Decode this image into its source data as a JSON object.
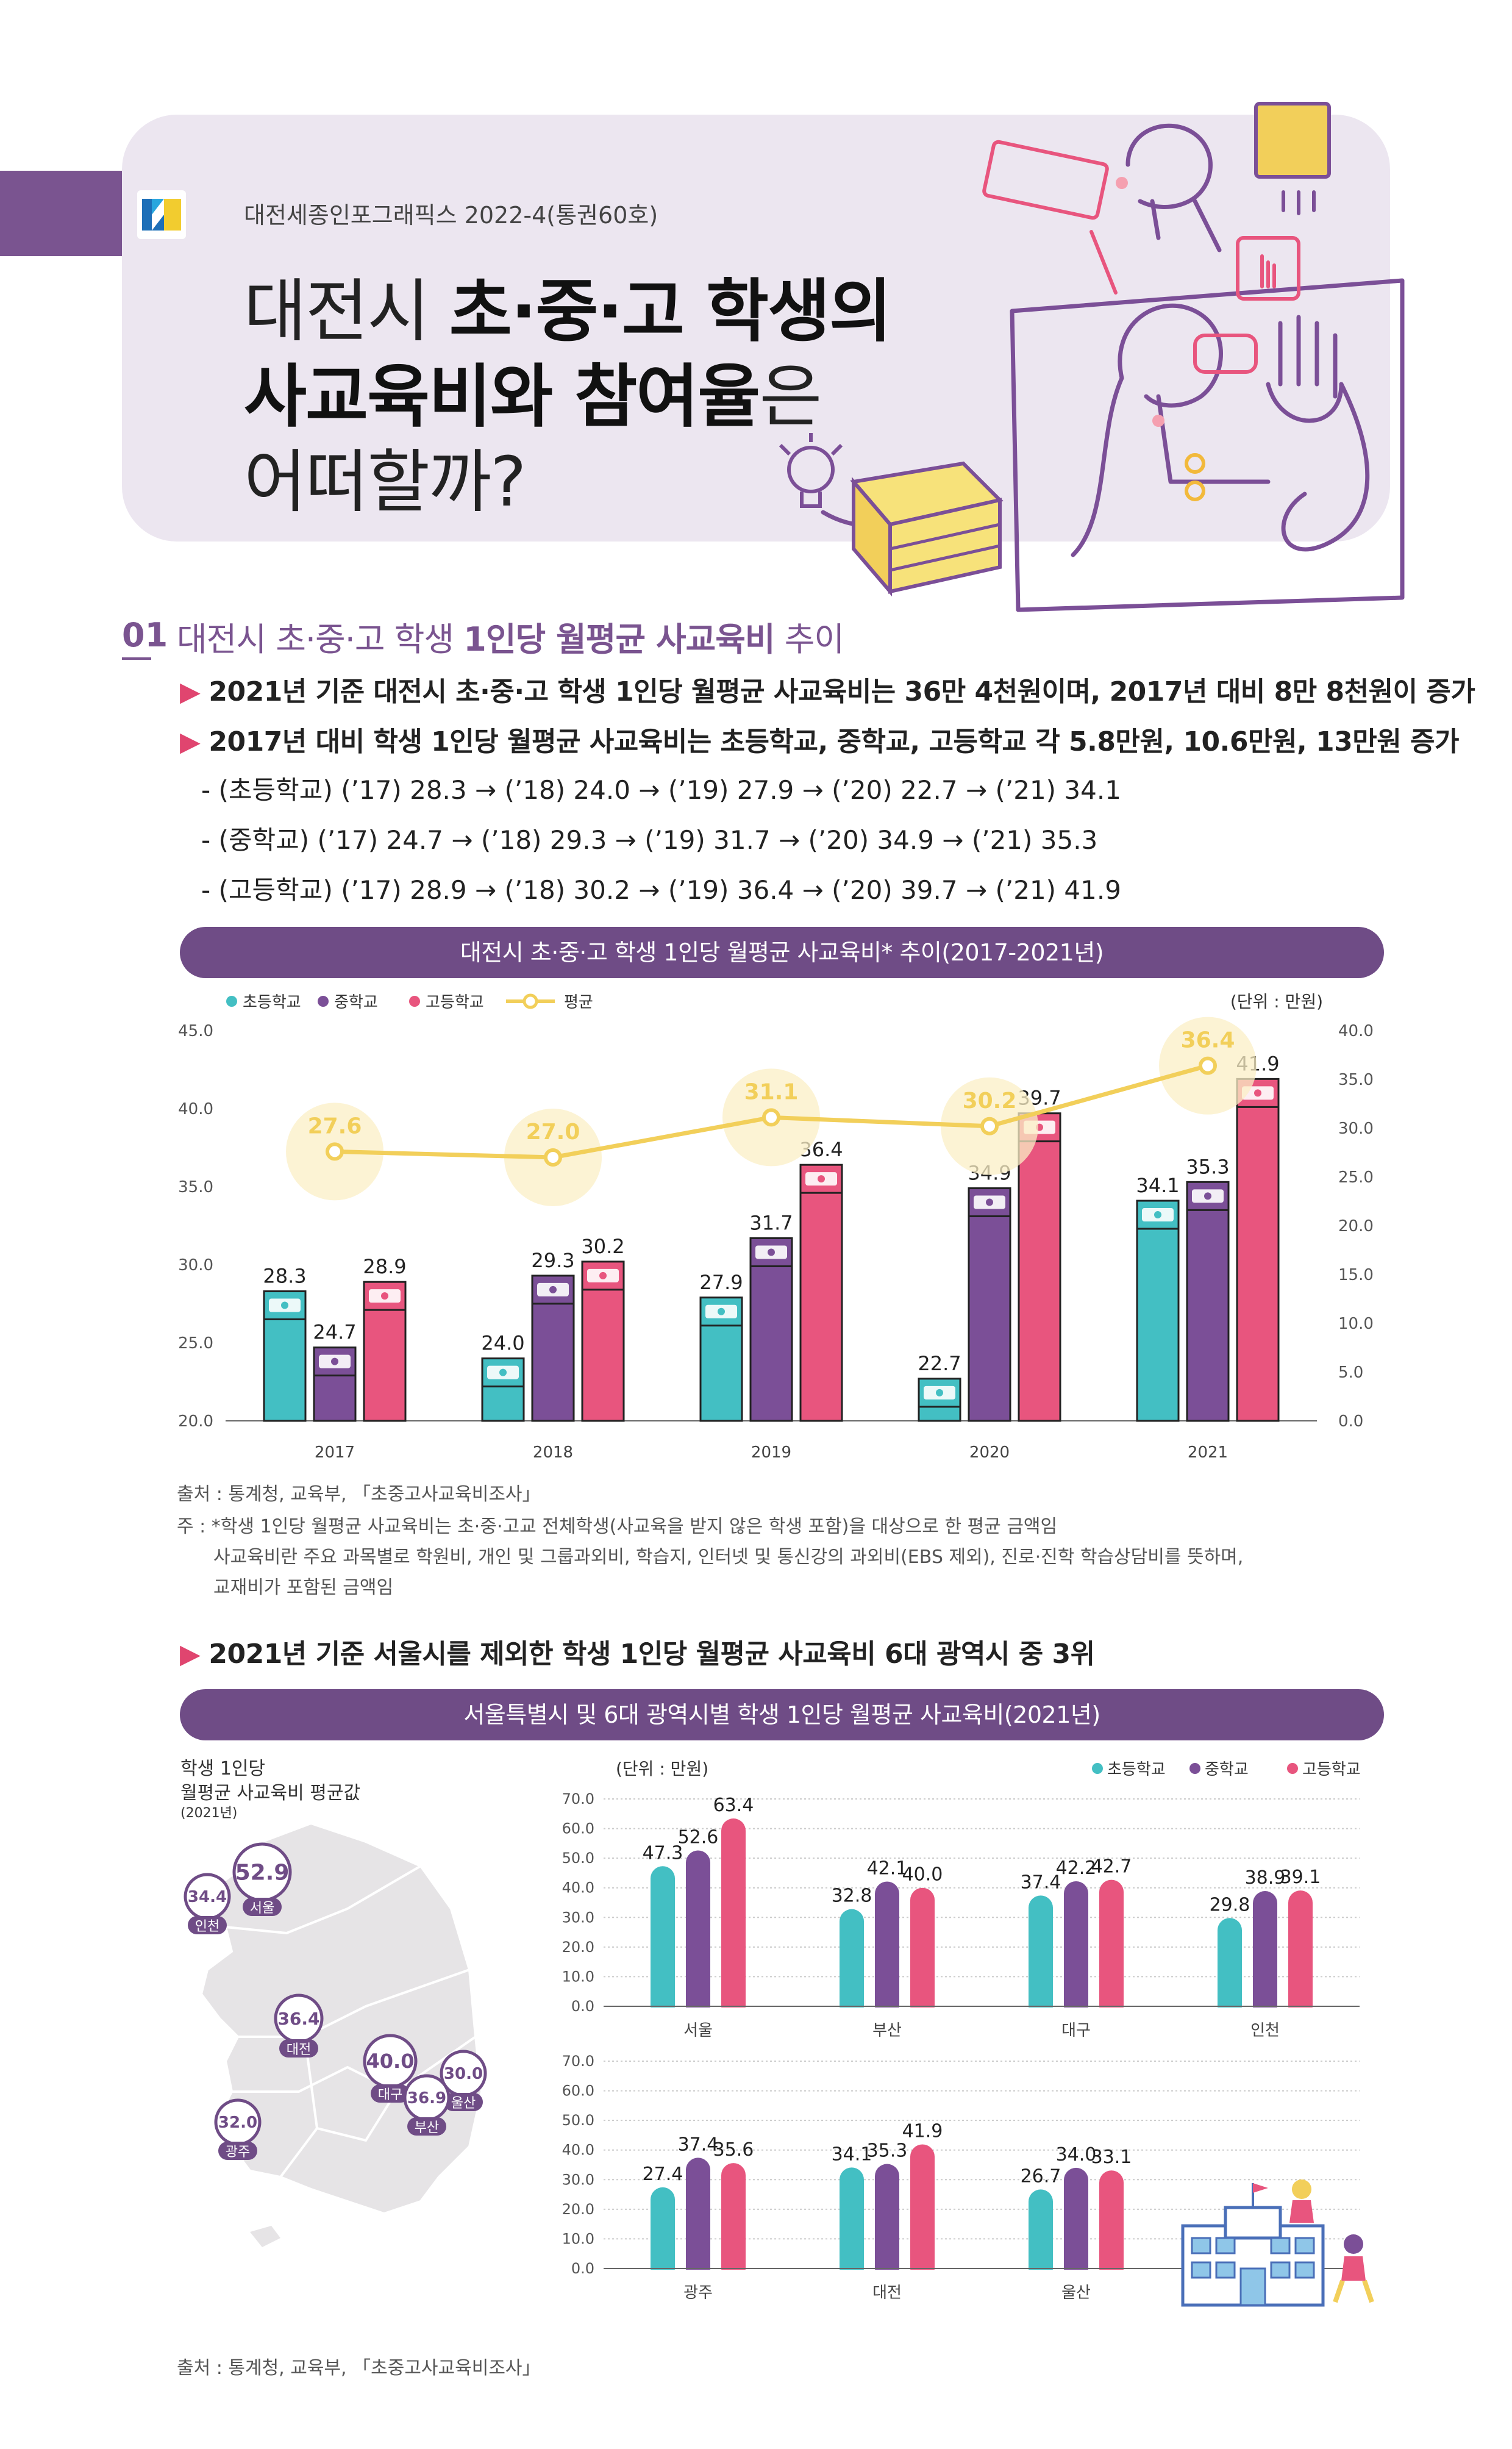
{
  "header": {
    "publication": "대전세종인포그래픽스 2022-4(통권60호)",
    "title": {
      "line1_a": "대전시 ",
      "line1_b": "초·중·고 학생의",
      "line2_a": "사교육비와 참여율",
      "line2_b": "은",
      "line3": "어떠할까?"
    }
  },
  "section1": {
    "number": "01",
    "title_a": "대전시 초·중·고 학생 ",
    "title_b": "1인당 월평균 사교육비",
    "title_c": " 추이",
    "bullets": [
      "2021년 기준 대전시 초·중·고 학생 1인당 월평균 사교육비는 36만 4천원이며, 2017년 대비 8만 8천원이 증가",
      "2017년 대비 학생 1인당 월평균 사교육비는 초등학교, 중학교, 고등학교 각 5.8만원, 10.6만원, 13만원 증가"
    ],
    "details": [
      "- (초등학교) (’17) 28.3 → (’18) 24.0 → (’19) 27.9 → (’20) 22.7 → (’21) 34.1",
      "- (중학교) (’17) 24.7 → (’18) 29.3 → (’19) 31.7 → (’20) 34.9 → (’21) 35.3",
      "- (고등학교) (’17) 28.9 → (’18) 30.2 → (’19) 36.4 → (’20) 39.7 → (’21) 41.9"
    ],
    "bullet3": "2021년 기준 서울시를 제외한 학생 1인당 월평균 사교육비 6대 광역시 중 3위"
  },
  "chart1_header": "대전시 초·중·고 학생 1인당 월평균 사교육비* 추이(2017-2021년)",
  "chart1_source": "출처 : 통계청, 교육부, 「초중고사교육비조사」",
  "chart1_notes": [
    "주 : *학생 1인당 월평균 사교육비는 초·중·고교 전체학생(사교육을 받지 않은 학생 포함)을 대상으로 한 평균 금액임",
    "사교육비란 주요 과목별로 학원비, 개인 및 그룹과외비, 학습지, 인터넷 및 통신강의 과외비(EBS 제외), 진로·진학 학습상담비를 뜻하며,",
    "교재비가 포함된 금액임"
  ],
  "chart2_header": "서울특별시 및 6대 광역시별 학생 1인당 월평균 사교육비(2021년)",
  "chart2_source": "출처 : 통계청, 교육부, 「초중고사교육비조사」",
  "map": {
    "title1": "학생 1인당",
    "title2": "월평균 사교육비 평균값",
    "title3": "(2021년)",
    "cities": [
      {
        "name": "서울",
        "value": "52.9"
      },
      {
        "name": "인천",
        "value": "34.4"
      },
      {
        "name": "대전",
        "value": "36.4"
      },
      {
        "name": "대구",
        "value": "40.0"
      },
      {
        "name": "울산",
        "value": "30.0"
      },
      {
        "name": "부산",
        "value": "36.9"
      },
      {
        "name": "광주",
        "value": "32.0"
      }
    ]
  },
  "colors": {
    "elementary": "#43bfc3",
    "middle": "#7b4f97",
    "high": "#e8557e",
    "average": "#f2cf5a",
    "purple": "#6f4c86"
  },
  "chart_data": [
    {
      "type": "bar",
      "categories": [
        "2017",
        "2018",
        "2019",
        "2020",
        "2021"
      ],
      "series": [
        {
          "name": "초등학교",
          "values": [
            28.3,
            24.0,
            27.9,
            22.7,
            34.1
          ]
        },
        {
          "name": "중학교",
          "values": [
            24.7,
            29.3,
            31.7,
            34.9,
            35.3
          ]
        },
        {
          "name": "고등학교",
          "values": [
            28.9,
            30.2,
            36.4,
            39.7,
            41.9
          ]
        }
      ],
      "line_series": {
        "name": "평균",
        "values": [
          27.6,
          27.0,
          31.1,
          30.2,
          36.4
        ]
      },
      "unit": "(단위 : 만원)",
      "ylim_left": [
        20.0,
        45.0
      ],
      "yticks_left": [
        "45.0",
        "40.0",
        "35.0",
        "30.0",
        "25.0",
        "20.0"
      ],
      "ylim_right": [
        0.0,
        40.0
      ],
      "yticks_right": [
        "40.0",
        "35.0",
        "30.0",
        "25.0",
        "20.0",
        "15.0",
        "10.0",
        "5.0",
        "0.0"
      ],
      "legend": "top-left"
    },
    {
      "type": "bar",
      "categories": [
        "서울",
        "부산",
        "대구",
        "인천"
      ],
      "series": [
        {
          "name": "초등학교",
          "values": [
            47.3,
            32.8,
            37.4,
            29.8
          ]
        },
        {
          "name": "중학교",
          "values": [
            52.6,
            42.1,
            42.2,
            38.9
          ]
        },
        {
          "name": "고등학교",
          "values": [
            63.4,
            40.0,
            42.7,
            39.1
          ]
        }
      ],
      "unit": "(단위 : 만원)",
      "ylim": [
        0.0,
        70.0
      ],
      "yticks": [
        "70.0",
        "60.0",
        "50.0",
        "40.0",
        "30.0",
        "20.0",
        "10.0",
        "0.0"
      ],
      "legend": "top-right"
    },
    {
      "type": "bar",
      "categories": [
        "광주",
        "대전",
        "울산"
      ],
      "series": [
        {
          "name": "초등학교",
          "values": [
            27.4,
            34.1,
            26.7
          ]
        },
        {
          "name": "중학교",
          "values": [
            37.4,
            35.3,
            34.0
          ]
        },
        {
          "name": "고등학교",
          "values": [
            35.6,
            41.9,
            33.1
          ]
        }
      ],
      "ylim": [
        0.0,
        70.0
      ],
      "yticks": [
        "70.0",
        "60.0",
        "50.0",
        "40.0",
        "30.0",
        "20.0",
        "10.0",
        "0.0"
      ]
    }
  ]
}
